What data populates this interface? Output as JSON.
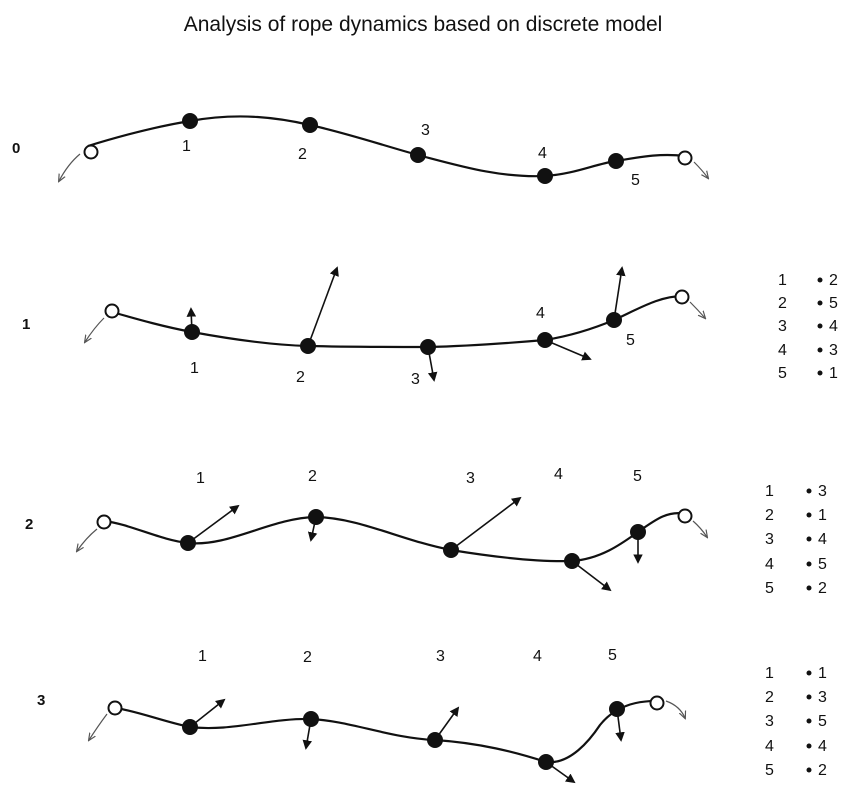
{
  "title": "Analysis of rope dynamics based on discrete model",
  "stages": [
    {
      "label": "0",
      "node_labels": [
        "1",
        "2",
        "3",
        "4",
        "5"
      ],
      "mapping": []
    },
    {
      "label": "1",
      "node_labels": [
        "1",
        "2",
        "3",
        "4",
        "5"
      ],
      "mapping": [
        {
          "from": "1",
          "to": "2"
        },
        {
          "from": "2",
          "to": "5"
        },
        {
          "from": "3",
          "to": "4"
        },
        {
          "from": "4",
          "to": "3"
        },
        {
          "from": "5",
          "to": "1"
        }
      ]
    },
    {
      "label": "2",
      "node_labels": [
        "1",
        "2",
        "3",
        "4",
        "5"
      ],
      "mapping": [
        {
          "from": "1",
          "to": "3"
        },
        {
          "from": "2",
          "to": "1"
        },
        {
          "from": "3",
          "to": "4"
        },
        {
          "from": "4",
          "to": "5"
        },
        {
          "from": "5",
          "to": "2"
        }
      ]
    },
    {
      "label": "3",
      "node_labels": [
        "1",
        "2",
        "3",
        "4",
        "5"
      ],
      "mapping": [
        {
          "from": "1",
          "to": "1"
        },
        {
          "from": "2",
          "to": "3"
        },
        {
          "from": "3",
          "to": "5"
        },
        {
          "from": "4",
          "to": "4"
        },
        {
          "from": "5",
          "to": "2"
        }
      ]
    }
  ],
  "colors": {
    "ink": "#111111",
    "background": "#ffffff"
  }
}
